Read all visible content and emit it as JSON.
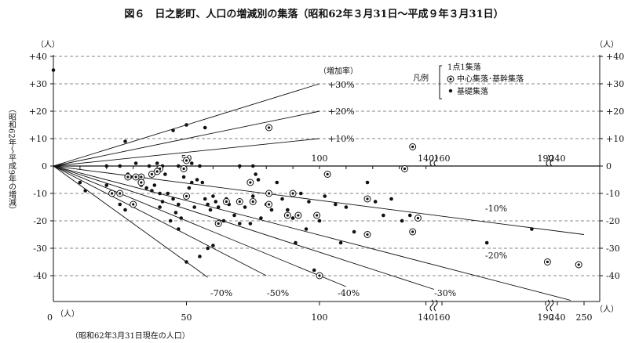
{
  "chart_data": {
    "type": "scatter",
    "title": "図６　日之影町、人口の増減別の集落（昭和62年３月31日～平成９年３月31日）",
    "xlabel": "（昭和62年3月31日現在の人口）",
    "x_unit": "（人）",
    "x_origin_label": "0",
    "ylabel": "（昭和62年～平成9年の増減）",
    "y_unit": "（人）",
    "ylim": [
      -50,
      45
    ],
    "y_ticks": [
      {
        "v": 40,
        "label": "+40"
      },
      {
        "v": 30,
        "label": "+30"
      },
      {
        "v": 20,
        "label": "+20"
      },
      {
        "v": 10,
        "label": "+10"
      },
      {
        "v": 0,
        "label": "0"
      },
      {
        "v": -10,
        "label": "-10"
      },
      {
        "v": -20,
        "label": "-20"
      },
      {
        "v": -30,
        "label": "-30"
      },
      {
        "v": -40,
        "label": "-40"
      }
    ],
    "x_ticks_bottom": [
      "50",
      "100",
      "140",
      "160",
      "190",
      "240",
      "250"
    ],
    "x_ticks_axis": [
      "50",
      "100",
      "140",
      "160",
      "190",
      "240"
    ],
    "legend": {
      "title": "凡例",
      "header": "1点1集落",
      "items": [
        {
          "symbol": "double-circle",
          "label": "中心集落･基幹集落"
        },
        {
          "symbol": "dot",
          "label": "基礎集落"
        }
      ]
    },
    "rate_header": "（増加率）",
    "rate_lines": [
      {
        "label": "+30%",
        "rate": 0.3
      },
      {
        "label": "+20%",
        "rate": 0.2
      },
      {
        "label": "+10%",
        "rate": 0.1
      },
      {
        "label": "-10%",
        "rate": -0.1
      },
      {
        "label": "-20%",
        "rate": -0.2
      },
      {
        "label": "-30%",
        "rate": -0.3
      },
      {
        "label": "-40%",
        "rate": -0.4
      },
      {
        "label": "-50%",
        "rate": -0.5
      },
      {
        "label": "-70%",
        "rate": -0.7
      }
    ],
    "series": [
      {
        "symbol": "dot",
        "points": [
          [
            0,
            35
          ],
          [
            27,
            9
          ],
          [
            45,
            13
          ],
          [
            50,
            15
          ],
          [
            57,
            14
          ],
          [
            52,
            1
          ],
          [
            39,
            1
          ],
          [
            36,
            0
          ],
          [
            41,
            0
          ],
          [
            47,
            0
          ],
          [
            55,
            0
          ],
          [
            70,
            0
          ],
          [
            75,
            0
          ],
          [
            31,
            1
          ],
          [
            20,
            0
          ],
          [
            25,
            0
          ],
          [
            10,
            -6
          ],
          [
            12,
            -9
          ],
          [
            20,
            -7
          ],
          [
            22,
            -10
          ],
          [
            25,
            -14
          ],
          [
            27,
            -16
          ],
          [
            28,
            -3
          ],
          [
            29,
            -4
          ],
          [
            32,
            -4
          ],
          [
            33,
            -7
          ],
          [
            35,
            -8
          ],
          [
            37,
            -9
          ],
          [
            38,
            -7
          ],
          [
            40,
            -10
          ],
          [
            41,
            -13
          ],
          [
            42,
            -3
          ],
          [
            45,
            -12
          ],
          [
            46,
            -17
          ],
          [
            47,
            -14
          ],
          [
            48,
            -19
          ],
          [
            49,
            -4
          ],
          [
            51,
            -8
          ],
          [
            52,
            -6
          ],
          [
            53,
            -15
          ],
          [
            54,
            -5
          ],
          [
            56,
            -6
          ],
          [
            57,
            -12
          ],
          [
            58,
            -14
          ],
          [
            59,
            -16
          ],
          [
            60,
            -11
          ],
          [
            61,
            -13
          ],
          [
            62,
            -15
          ],
          [
            64,
            -20
          ],
          [
            65,
            -12
          ],
          [
            66,
            -14
          ],
          [
            68,
            -18
          ],
          [
            70,
            -21
          ],
          [
            72,
            -15
          ],
          [
            74,
            -21
          ],
          [
            75,
            -11
          ],
          [
            76,
            -3
          ],
          [
            77,
            -5
          ],
          [
            78,
            -19
          ],
          [
            80,
            -14
          ],
          [
            82,
            -16
          ],
          [
            84,
            -6
          ],
          [
            86,
            -12
          ],
          [
            88,
            -16
          ],
          [
            90,
            -19
          ],
          [
            91,
            -28
          ],
          [
            93,
            -10
          ],
          [
            95,
            -23
          ],
          [
            96,
            -13
          ],
          [
            98,
            -38
          ],
          [
            100,
            -20
          ],
          [
            102,
            -11
          ],
          [
            106,
            -14
          ],
          [
            108,
            -28
          ],
          [
            110,
            -15
          ],
          [
            113,
            -24
          ],
          [
            118,
            -6
          ],
          [
            121,
            -13
          ],
          [
            124,
            -18
          ],
          [
            127,
            -12
          ],
          [
            131,
            -20
          ],
          [
            134,
            -18
          ],
          [
            50,
            -35
          ],
          [
            55,
            -33
          ],
          [
            58,
            -30
          ],
          [
            60,
            -29
          ],
          [
            47,
            -23
          ],
          [
            44,
            -20
          ],
          [
            40,
            -15
          ],
          [
            43,
            -10
          ],
          [
            173,
            -28
          ],
          [
            186,
            -23
          ]
        ]
      },
      {
        "symbol": "double-circle",
        "points": [
          [
            50,
            2
          ],
          [
            49,
            -1
          ],
          [
            40,
            -1
          ],
          [
            39,
            -2
          ],
          [
            37,
            -3
          ],
          [
            28,
            -4
          ],
          [
            33,
            -4
          ],
          [
            31,
            -4
          ],
          [
            33,
            -6
          ],
          [
            25,
            -10
          ],
          [
            22,
            -10
          ],
          [
            30,
            -14
          ],
          [
            50,
            -11
          ],
          [
            65,
            -13
          ],
          [
            62,
            -21
          ],
          [
            70,
            -13
          ],
          [
            75,
            -13
          ],
          [
            74,
            -6
          ],
          [
            81,
            -14
          ],
          [
            81,
            -10
          ],
          [
            81,
            14
          ],
          [
            88,
            -18
          ],
          [
            90,
            -10
          ],
          [
            92,
            -18
          ],
          [
            99,
            -18
          ],
          [
            100,
            -40
          ],
          [
            103,
            -3
          ],
          [
            118,
            -12
          ],
          [
            118,
            -25
          ],
          [
            132,
            -1
          ],
          [
            135,
            7
          ],
          [
            135,
            -24
          ],
          [
            137,
            -19
          ],
          [
            198,
            -35
          ],
          [
            248,
            -36
          ]
        ]
      }
    ]
  }
}
